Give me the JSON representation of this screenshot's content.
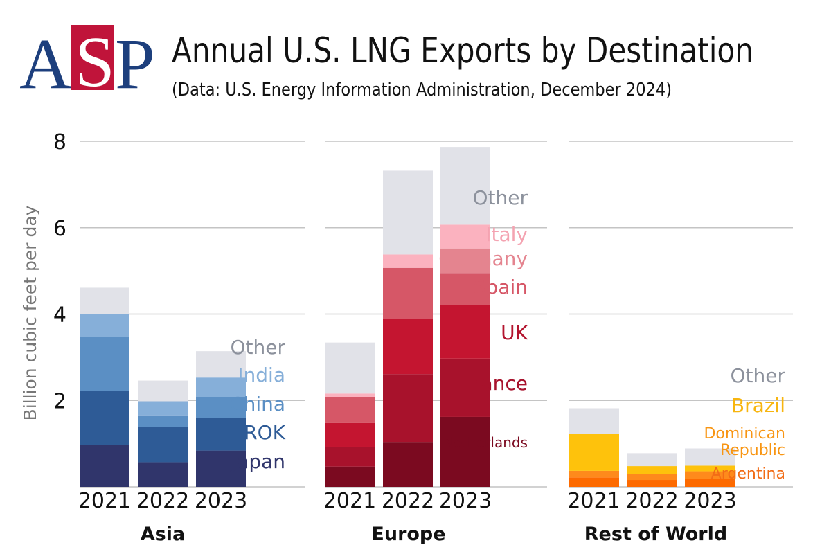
{
  "logo": {
    "left": "A",
    "box": "S",
    "right": "P",
    "blue": "#1d3f7d",
    "red": "#c0143a"
  },
  "header": {
    "title": "Annual U.S. LNG Exports by Destination",
    "subtitle": "(Data: U.S. Energy Information Administration, December 2024)"
  },
  "chart_data": {
    "type": "bar",
    "stacked": true,
    "ylabel": "Billion cubic feet per day",
    "ylim": [
      0,
      8
    ],
    "yticks": [
      2,
      4,
      6,
      8
    ],
    "ytick_labels": [
      "2",
      "4",
      "6",
      "8"
    ],
    "grid": true,
    "panels": [
      {
        "name": "Asia",
        "categories": [
          "2021",
          "2022",
          "2023"
        ],
        "series": [
          {
            "name": "Japan",
            "color": "#30356b",
            "label_color": "#30356b",
            "values": [
              0.97,
              0.57,
              0.84
            ]
          },
          {
            "name": "ROK",
            "color": "#2e5b96",
            "label_color": "#2e5b96",
            "values": [
              1.25,
              0.81,
              0.75
            ]
          },
          {
            "name": "China",
            "color": "#5b8fc4",
            "label_color": "#5b8fc4",
            "values": [
              1.25,
              0.26,
              0.49
            ]
          },
          {
            "name": "India",
            "color": "#86afd9",
            "label_color": "#86afd9",
            "values": [
              0.53,
              0.34,
              0.45
            ]
          },
          {
            "name": "Other",
            "color": "#e1e2e8",
            "label_color": "#8c919c",
            "values": [
              0.61,
              0.48,
              0.61
            ]
          }
        ]
      },
      {
        "name": "Europe",
        "categories": [
          "2021",
          "2022",
          "2023"
        ],
        "series": [
          {
            "name": "Netherlands",
            "color": "#7b0a20",
            "label_color": "#7b0a20",
            "values": [
              0.47,
              1.04,
              1.62
            ]
          },
          {
            "name": "France",
            "color": "#a8122c",
            "label_color": "#a8122c",
            "values": [
              0.46,
              1.57,
              1.35
            ]
          },
          {
            "name": "UK",
            "color": "#c41530",
            "label_color": "#b3142e",
            "values": [
              0.55,
              1.28,
              1.24
            ]
          },
          {
            "name": "Spain",
            "color": "#d65767",
            "label_color": "#d65767",
            "values": [
              0.59,
              1.18,
              0.74
            ]
          },
          {
            "name": "Germany",
            "color": "#e4848f",
            "label_color": "#e4848f",
            "values": [
              0.0,
              0.0,
              0.57
            ]
          },
          {
            "name": "Italy",
            "color": "#fbb2bf",
            "label_color": "#f4a3b1",
            "values": [
              0.09,
              0.31,
              0.55
            ]
          },
          {
            "name": "Other",
            "color": "#e1e2e8",
            "label_color": "#8c919c",
            "values": [
              1.18,
              1.94,
              1.8
            ]
          }
        ]
      },
      {
        "name": "Rest of World",
        "categories": [
          "2021",
          "2022",
          "2023"
        ],
        "series": [
          {
            "name": "Argentina",
            "color": "#fd6a00",
            "label_color": "#f26c16",
            "values": [
              0.22,
              0.16,
              0.19
            ]
          },
          {
            "name": "Dominican Republic",
            "color": "#fe8a1c",
            "label_color": "#f89512",
            "values": [
              0.15,
              0.13,
              0.17
            ]
          },
          {
            "name": "Brazil",
            "color": "#fec20c",
            "label_color": "#f7b50f",
            "values": [
              0.85,
              0.19,
              0.13
            ]
          },
          {
            "name": "Other",
            "color": "#e1e2e8",
            "label_color": "#8c919c",
            "values": [
              0.6,
              0.3,
              0.4
            ]
          }
        ]
      }
    ],
    "legend_placement": "right of each panel, aligned to the 2023 bar segments"
  }
}
